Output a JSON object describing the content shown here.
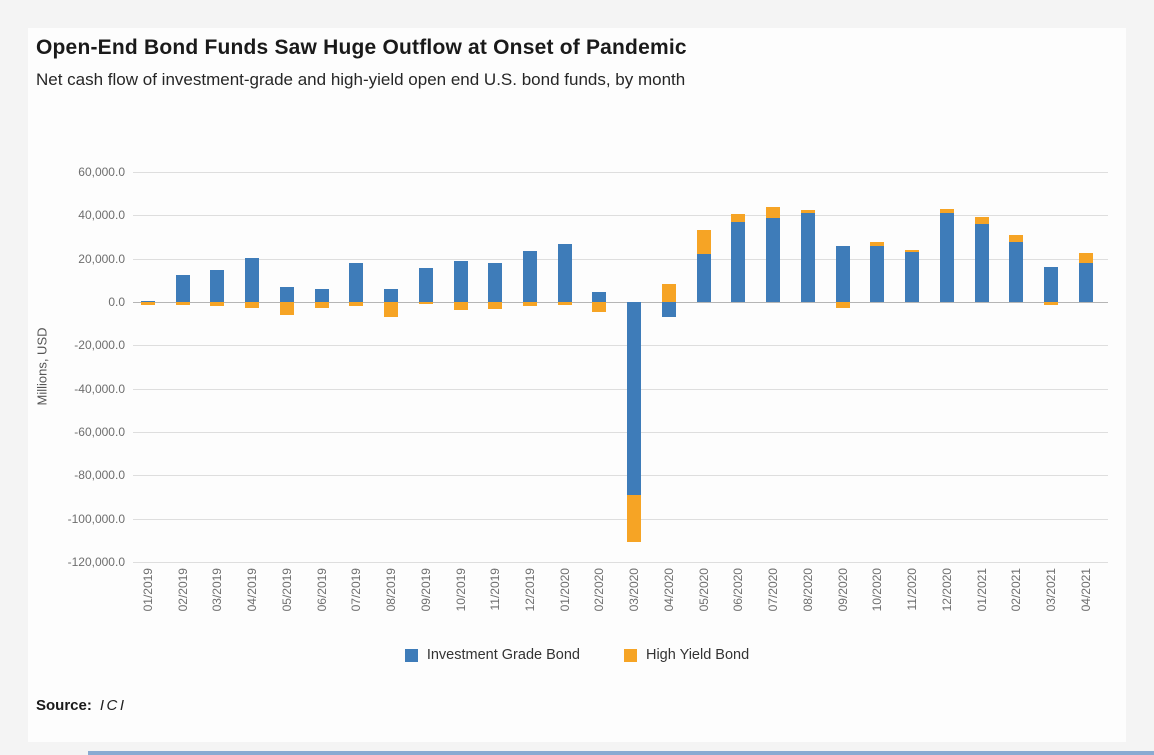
{
  "page": {
    "title": "Open-End Bond Funds Saw Huge Outflow at Onset of Pandemic",
    "subtitle": "Net cash flow of investment-grade and high-yield open end U.S. bond funds, by month",
    "source_label": "Source:",
    "source_value": "ICI"
  },
  "colors": {
    "investment_grade_blue": "#3e7cb9",
    "high_yield_orange": "#f6a425",
    "gridline": "#dedede",
    "zero_line": "#b5b5b5"
  },
  "chart_data": {
    "type": "bar",
    "stacked": true,
    "title": "Open-End Bond Funds Saw Huge Outflow at Onset of Pandemic",
    "xlabel": "",
    "ylabel": "Millions, USD",
    "ylim": [
      -120000,
      60000
    ],
    "grid": true,
    "legend_position": "bottom",
    "categories": [
      "01/2019",
      "02/2019",
      "03/2019",
      "04/2019",
      "05/2019",
      "06/2019",
      "07/2019",
      "08/2019",
      "09/2019",
      "10/2019",
      "11/2019",
      "12/2019",
      "01/2020",
      "02/2020",
      "03/2020",
      "04/2020",
      "05/2020",
      "06/2020",
      "07/2020",
      "08/2020",
      "09/2020",
      "10/2020",
      "11/2020",
      "12/2020",
      "01/2021",
      "02/2021",
      "03/2021",
      "04/2021"
    ],
    "series": [
      {
        "name": "Investment Grade Bond",
        "color": "#3e7cb9",
        "values": [
          500,
          12500,
          14800,
          20200,
          7000,
          5900,
          18200,
          6000,
          15500,
          19100,
          17800,
          23500,
          26600,
          4400,
          -89000,
          -6900,
          22000,
          37100,
          38700,
          41300,
          26000,
          25900,
          23000,
          41000,
          36000,
          27900,
          16300,
          18200
        ]
      },
      {
        "name": "High Yield Bond",
        "color": "#f6a425",
        "values": [
          -1500,
          -1500,
          -2000,
          -2600,
          -6000,
          -2900,
          -1900,
          -7100,
          -1100,
          -3700,
          -3200,
          -1900,
          -1500,
          -4800,
          -21500,
          8500,
          11200,
          3900,
          4900,
          1300,
          -2800,
          2000,
          1100,
          2000,
          3400,
          3100,
          -1200,
          4600
        ]
      }
    ],
    "yticks": [
      {
        "v": 60000,
        "label": "60,000.0"
      },
      {
        "v": 40000,
        "label": "40,000.0"
      },
      {
        "v": 20000,
        "label": "20,000.0"
      },
      {
        "v": 0,
        "label": "0.0"
      },
      {
        "v": -20000,
        "label": "-20,000.0"
      },
      {
        "v": -40000,
        "label": "-40,000.0"
      },
      {
        "v": -60000,
        "label": "-60,000.0"
      },
      {
        "v": -80000,
        "label": "-80,000.0"
      },
      {
        "v": -100000,
        "label": "-100,000.0"
      },
      {
        "v": -120000,
        "label": "-120,000.0"
      }
    ]
  }
}
